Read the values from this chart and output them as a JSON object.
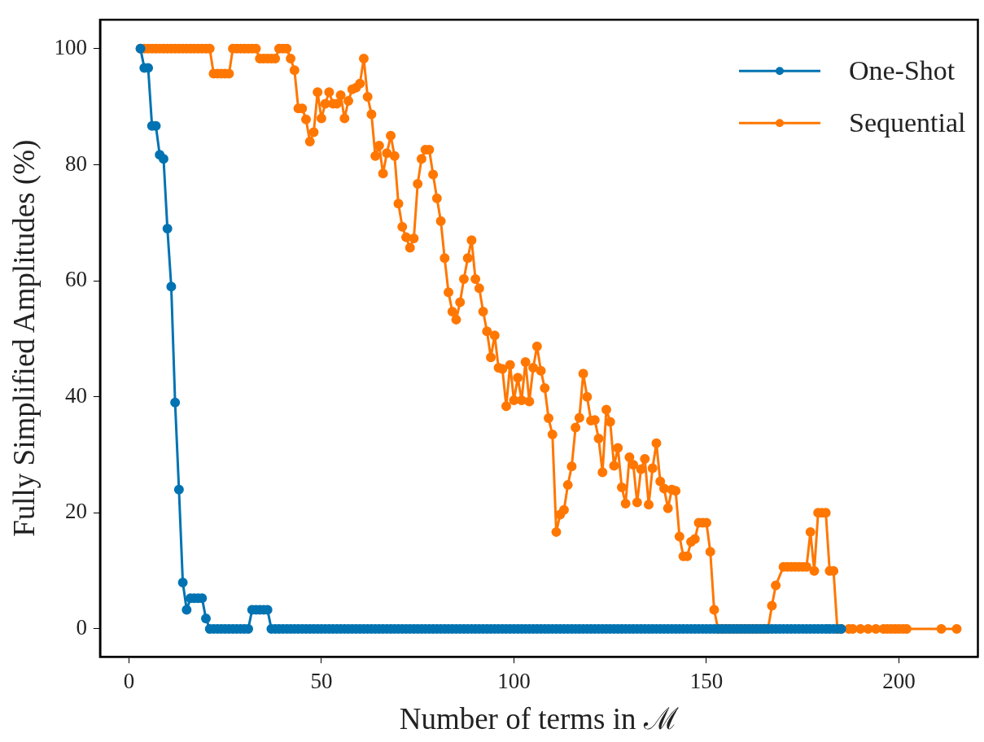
{
  "chart_data": {
    "type": "line",
    "xlabel": "Number of terms in ℳ",
    "ylabel": "Fully Simplified Amplitudes (%)",
    "xlim": [
      -7.5,
      220.5
    ],
    "ylim": [
      -4.8,
      105
    ],
    "xticks": [
      0,
      50,
      100,
      150,
      200
    ],
    "yticks": [
      0,
      20,
      40,
      60,
      80,
      100
    ],
    "grid": false,
    "legend": "top right",
    "marker": "circle",
    "line_style": "solid",
    "series": [
      {
        "name": "One-Shot",
        "color": "#0173b2",
        "x": [
          3,
          4,
          5,
          6,
          7,
          8,
          9,
          10,
          11,
          12,
          13,
          14,
          15,
          16,
          17,
          18,
          19,
          20,
          21,
          22,
          23,
          24,
          25,
          26,
          27,
          28,
          29,
          30,
          31,
          32,
          33,
          34,
          35,
          36,
          37,
          38,
          39,
          40,
          41,
          42,
          43,
          44,
          45,
          46,
          47,
          48,
          49,
          50,
          51,
          52,
          53,
          54,
          55,
          56,
          57,
          58,
          59,
          60,
          61,
          62,
          63,
          64,
          65,
          66,
          67,
          68,
          69,
          70,
          71,
          72,
          73,
          74,
          75,
          76,
          77,
          78,
          79,
          80,
          81,
          82,
          83,
          84,
          85,
          86,
          87,
          88,
          89,
          90,
          91,
          92,
          93,
          94,
          95,
          96,
          97,
          98,
          99,
          100,
          101,
          102,
          103,
          104,
          105,
          106,
          107,
          108,
          109,
          110,
          111,
          112,
          113,
          114,
          115,
          116,
          117,
          118,
          119,
          120,
          121,
          122,
          123,
          124,
          125,
          126,
          127,
          128,
          129,
          130,
          131,
          132,
          133,
          134,
          135,
          136,
          137,
          138,
          139,
          140,
          141,
          142,
          143,
          144,
          145,
          146,
          147,
          148,
          149,
          150,
          151,
          152,
          153,
          154,
          155,
          156,
          157,
          158,
          159,
          160,
          161,
          162,
          163,
          164,
          165,
          166,
          167,
          168,
          169,
          170,
          171,
          172,
          173,
          174,
          175,
          176,
          177,
          178,
          179,
          180,
          181,
          182,
          183,
          184,
          185
        ],
        "values": [
          100,
          96.7,
          96.7,
          86.7,
          86.7,
          81.7,
          81,
          69,
          59,
          39,
          24,
          8,
          3.3,
          5.3,
          5.3,
          5.3,
          5.3,
          1.8,
          0,
          0,
          0,
          0,
          0,
          0,
          0,
          0,
          0,
          0,
          0,
          3.3,
          3.3,
          3.3,
          3.3,
          3.3,
          0,
          0,
          0,
          0,
          0,
          0,
          0,
          0,
          0,
          0,
          0,
          0,
          0,
          0,
          0,
          0,
          0,
          0,
          0,
          0,
          0,
          0,
          0,
          0,
          0,
          0,
          0,
          0,
          0,
          0,
          0,
          0,
          0,
          0,
          0,
          0,
          0,
          0,
          0,
          0,
          0,
          0,
          0,
          0,
          0,
          0,
          0,
          0,
          0,
          0,
          0,
          0,
          0,
          0,
          0,
          0,
          0,
          0,
          0,
          0,
          0,
          0,
          0,
          0,
          0,
          0,
          0,
          0,
          0,
          0,
          0,
          0,
          0,
          0,
          0,
          0,
          0,
          0,
          0,
          0,
          0,
          0,
          0,
          0,
          0,
          0,
          0,
          0,
          0,
          0,
          0,
          0,
          0,
          0,
          0,
          0,
          0,
          0,
          0,
          0,
          0,
          0,
          0,
          0,
          0,
          0,
          0,
          0,
          0,
          0,
          0,
          0,
          0,
          0,
          0,
          0,
          0,
          0,
          0,
          0,
          0,
          0,
          0,
          0,
          0,
          0,
          0,
          0,
          0,
          0,
          0,
          0,
          0,
          0,
          0,
          0,
          0,
          0,
          0,
          0,
          0,
          0,
          0,
          0,
          0,
          0,
          0,
          0,
          0
        ]
      },
      {
        "name": "Sequential",
        "color": "#ff7700",
        "x": [
          3,
          4,
          5,
          6,
          7,
          8,
          9,
          10,
          11,
          12,
          13,
          14,
          15,
          16,
          17,
          18,
          19,
          20,
          21,
          22,
          23,
          24,
          25,
          26,
          27,
          28,
          29,
          30,
          31,
          32,
          33,
          34,
          35,
          36,
          37,
          38,
          39,
          40,
          41,
          42,
          43,
          44,
          45,
          46,
          47,
          48,
          49,
          50,
          51,
          52,
          53,
          54,
          55,
          56,
          57,
          58,
          59,
          60,
          61,
          62,
          63,
          64,
          65,
          66,
          67,
          68,
          69,
          70,
          71,
          72,
          73,
          74,
          75,
          76,
          77,
          78,
          79,
          80,
          81,
          82,
          83,
          84,
          85,
          86,
          87,
          88,
          89,
          90,
          91,
          92,
          93,
          94,
          95,
          96,
          97,
          98,
          99,
          100,
          101,
          102,
          103,
          104,
          105,
          106,
          107,
          108,
          109,
          110,
          111,
          112,
          113,
          114,
          115,
          116,
          117,
          118,
          119,
          120,
          121,
          122,
          123,
          124,
          125,
          126,
          127,
          128,
          129,
          130,
          131,
          132,
          133,
          134,
          135,
          136,
          137,
          138,
          139,
          140,
          141,
          142,
          143,
          144,
          145,
          146,
          147,
          148,
          149,
          150,
          151,
          152,
          153,
          154,
          155,
          156,
          157,
          158,
          159,
          160,
          161,
          162,
          163,
          164,
          165,
          166,
          167,
          168,
          170,
          171,
          172,
          173,
          174,
          175,
          176,
          177,
          178,
          179,
          180,
          181,
          182,
          183,
          184,
          185,
          187,
          188,
          190,
          192,
          194,
          196,
          197,
          198,
          199,
          200,
          201,
          202,
          211,
          215
        ],
        "values": [
          100,
          100,
          100,
          100,
          100,
          100,
          100,
          100,
          100,
          100,
          100,
          100,
          100,
          100,
          100,
          100,
          100,
          100,
          100,
          95.7,
          95.7,
          95.7,
          95.7,
          95.7,
          100,
          100,
          100,
          100,
          100,
          100,
          100,
          98.3,
          98.3,
          98.3,
          98.3,
          98.3,
          100,
          100,
          100,
          98.3,
          96.3,
          89.7,
          89.7,
          87.8,
          84,
          85.6,
          92.5,
          88,
          90.5,
          92.5,
          90.5,
          90.5,
          92,
          88,
          91,
          93,
          93.3,
          94,
          98.3,
          91.7,
          88.7,
          81.5,
          83.3,
          78.5,
          82,
          85,
          81.5,
          73.3,
          69.3,
          67.5,
          65.7,
          67.3,
          76.7,
          81,
          82.6,
          82.6,
          78.3,
          74.2,
          70.3,
          63.9,
          58,
          54.7,
          53.3,
          56.3,
          60.3,
          63.9,
          67,
          60.3,
          58.7,
          54.7,
          51.3,
          46.8,
          50.6,
          45,
          44.8,
          38.4,
          45.5,
          39.4,
          43.3,
          39.4,
          46,
          39.2,
          45,
          48.7,
          44.5,
          41.5,
          36.3,
          33.5,
          16.7,
          19.7,
          20.5,
          24.8,
          28,
          34.7,
          36.4,
          44,
          40,
          35.9,
          36,
          32.8,
          27,
          37.8,
          35.7,
          28.1,
          31.2,
          24.4,
          21.6,
          29.6,
          28.3,
          21.8,
          27.5,
          29.3,
          21.4,
          27.7,
          32,
          25.4,
          24.2,
          20.8,
          24,
          23.8,
          15.9,
          12.5,
          12.5,
          15,
          15.5,
          18.3,
          18.3,
          18.3,
          13.3,
          3.3,
          0,
          0,
          0,
          0,
          0,
          0,
          0,
          0,
          0,
          0,
          0,
          0,
          0,
          0,
          4,
          7.5,
          10.7,
          10.7,
          10.7,
          10.7,
          10.7,
          10.7,
          10.7,
          16.7,
          10,
          20,
          20,
          20,
          10,
          10,
          0,
          0,
          0,
          0,
          0,
          0,
          0,
          0,
          0,
          0,
          0,
          0,
          0,
          0,
          0,
          0
        ]
      }
    ]
  }
}
